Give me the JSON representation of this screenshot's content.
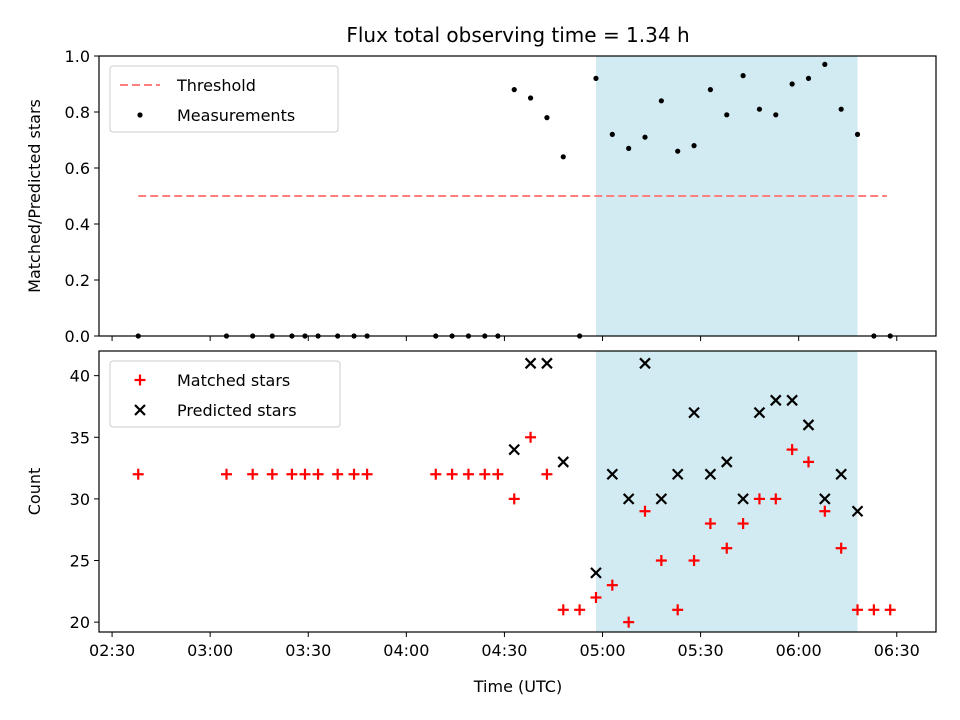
{
  "title": "Flux total observing time = 1.34 h",
  "xlabel": "Time (UTC)",
  "x_ticks": [
    "02:30",
    "03:00",
    "03:30",
    "04:00",
    "04:30",
    "05:00",
    "05:30",
    "06:00",
    "06:30"
  ],
  "colors": {
    "threshold": "#ff7f7f",
    "span": "#add8e6",
    "matched": "#ff0000",
    "predicted": "#000000",
    "measurement": "#000000"
  },
  "chart_data": [
    {
      "type": "scatter",
      "ylabel": "Matched/Predicted stars",
      "ylim": [
        0,
        1.0
      ],
      "y_ticks": [
        "0.0",
        "0.2",
        "0.4",
        "0.6",
        "0.8",
        "1.0"
      ],
      "legend_position": "top-left",
      "shaded_span": {
        "x": [
          "04:58",
          "06:18"
        ]
      },
      "threshold": {
        "name": "Threshold",
        "y": 0.5,
        "x": [
          "02:38",
          "06:27"
        ]
      },
      "series": [
        {
          "name": "Measurements",
          "x": [
            "02:38",
            "03:05",
            "03:13",
            "03:19",
            "03:25",
            "03:29",
            "03:33",
            "03:39",
            "03:44",
            "03:48",
            "04:09",
            "04:14",
            "04:19",
            "04:24",
            "04:28",
            "04:33",
            "04:38",
            "04:43",
            "04:48",
            "04:53",
            "04:58",
            "05:03",
            "05:08",
            "05:13",
            "05:18",
            "05:23",
            "05:28",
            "05:33",
            "05:38",
            "05:43",
            "05:48",
            "05:53",
            "05:58",
            "06:03",
            "06:08",
            "06:13",
            "06:18",
            "06:23",
            "06:28"
          ],
          "values": [
            0,
            0,
            0,
            0,
            0,
            0,
            0,
            0,
            0,
            0,
            0,
            0,
            0,
            0,
            0,
            0.88,
            0.85,
            0.78,
            0.64,
            0,
            0.92,
            0.72,
            0.67,
            0.71,
            0.84,
            0.66,
            0.68,
            0.88,
            0.79,
            0.93,
            0.81,
            0.79,
            0.9,
            0.92,
            0.97,
            0.81,
            0.72,
            0,
            0
          ]
        }
      ]
    },
    {
      "type": "scatter",
      "ylabel": "Count",
      "ylim": [
        19.2,
        42
      ],
      "y_ticks": [
        "20",
        "25",
        "30",
        "35",
        "40"
      ],
      "legend_position": "top-left",
      "shaded_span": {
        "x": [
          "04:58",
          "06:18"
        ]
      },
      "series": [
        {
          "name": "Matched stars",
          "marker": "+",
          "x": [
            "02:38",
            "03:05",
            "03:13",
            "03:19",
            "03:25",
            "03:29",
            "03:33",
            "03:39",
            "03:44",
            "03:48",
            "04:09",
            "04:14",
            "04:19",
            "04:24",
            "04:28",
            "04:33",
            "04:38",
            "04:43",
            "04:48",
            "04:53",
            "04:58",
            "05:03",
            "05:08",
            "05:13",
            "05:18",
            "05:23",
            "05:28",
            "05:33",
            "05:38",
            "05:43",
            "05:48",
            "05:53",
            "05:58",
            "06:03",
            "06:08",
            "06:13",
            "06:18",
            "06:23",
            "06:28"
          ],
          "values": [
            32,
            32,
            32,
            32,
            32,
            32,
            32,
            32,
            32,
            32,
            32,
            32,
            32,
            32,
            32,
            30,
            35,
            32,
            21,
            21,
            22,
            23,
            20,
            29,
            25,
            21,
            25,
            28,
            26,
            28,
            30,
            30,
            34,
            33,
            29,
            26,
            21,
            21,
            21
          ]
        },
        {
          "name": "Predicted stars",
          "marker": "x",
          "x": [
            "04:33",
            "04:38",
            "04:43",
            "04:48",
            "04:58",
            "05:03",
            "05:08",
            "05:13",
            "05:18",
            "05:23",
            "05:28",
            "05:33",
            "05:38",
            "05:43",
            "05:48",
            "05:53",
            "05:58",
            "06:03",
            "06:08",
            "06:13",
            "06:18"
          ],
          "values": [
            34,
            41,
            41,
            33,
            24,
            32,
            30,
            41,
            30,
            32,
            37,
            32,
            33,
            30,
            37,
            38,
            38,
            36,
            30,
            32,
            29
          ]
        }
      ]
    }
  ]
}
